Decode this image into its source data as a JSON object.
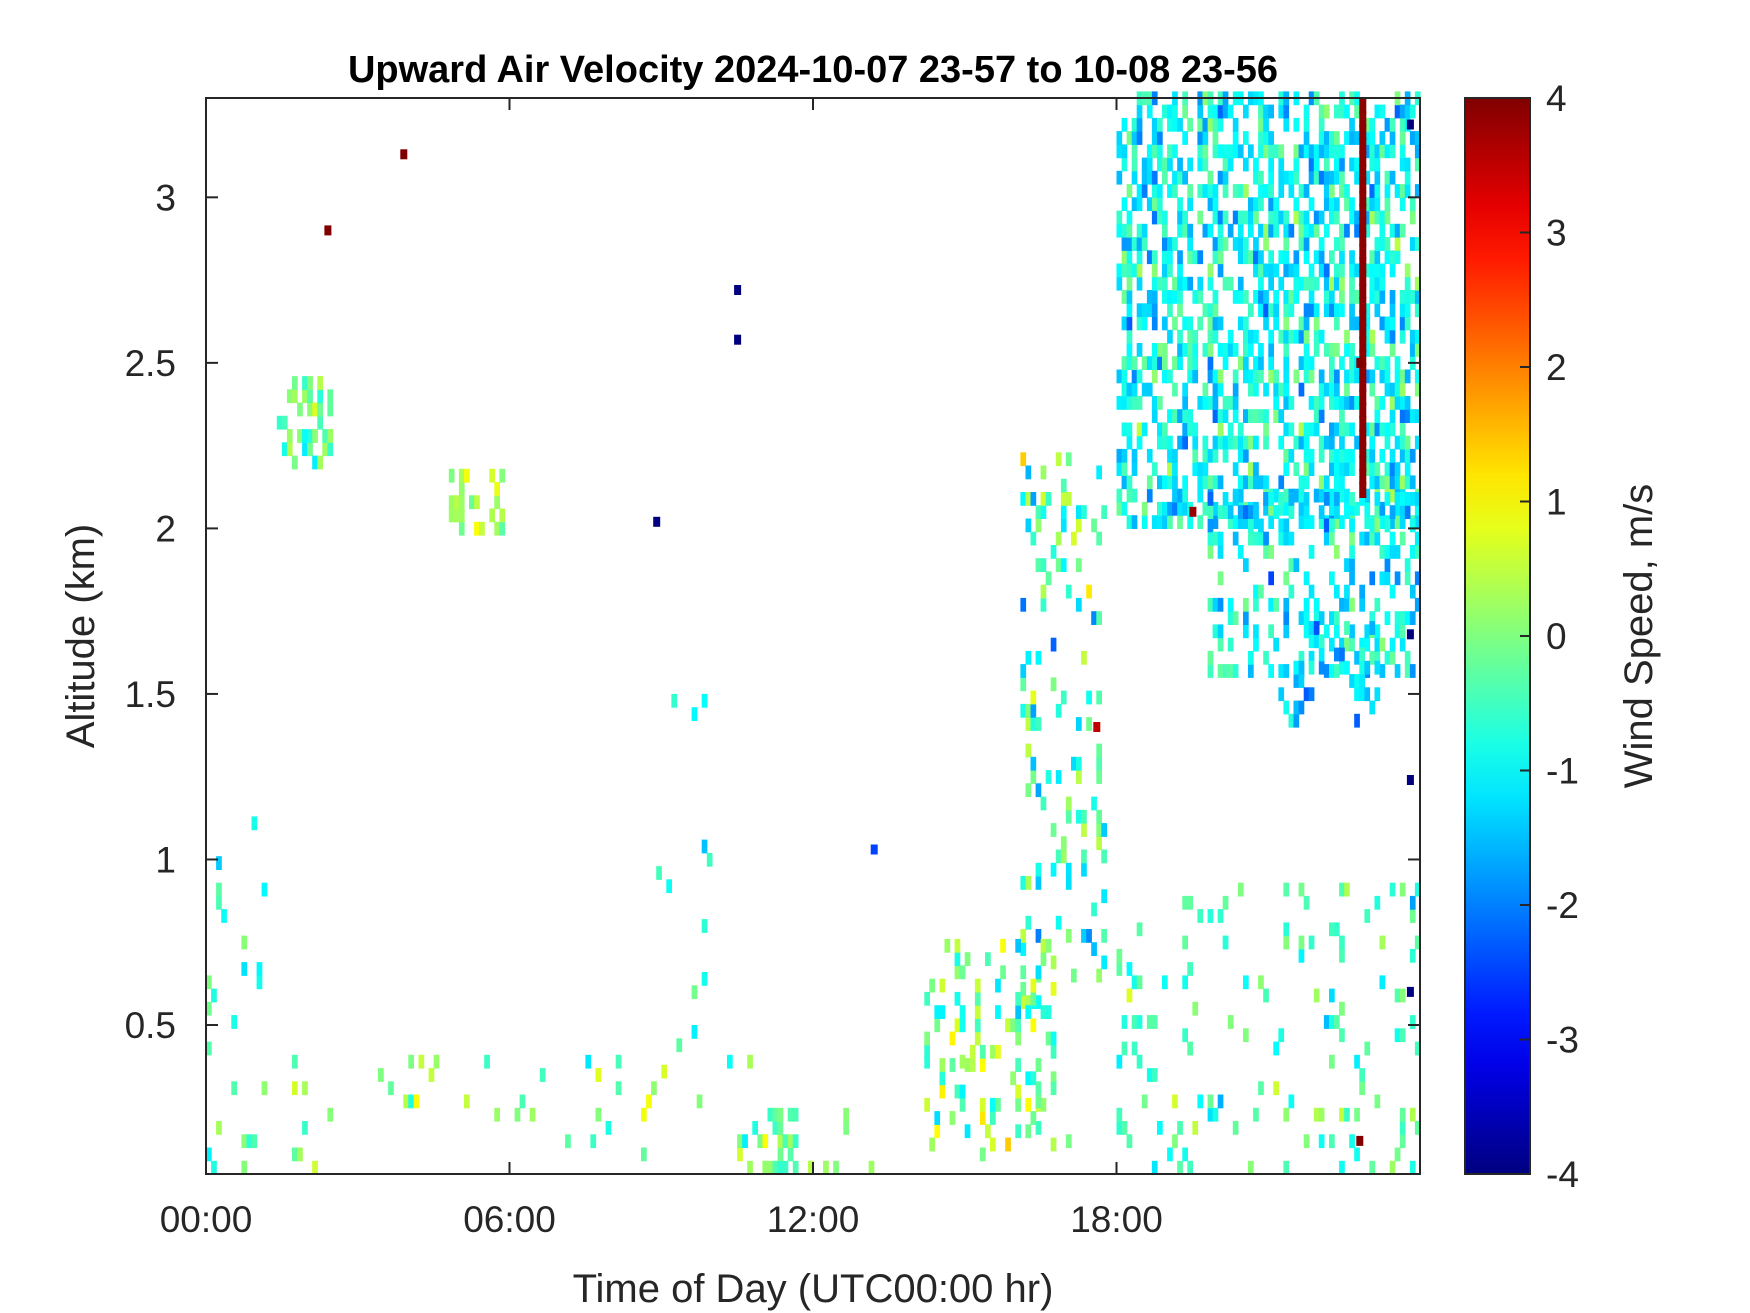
{
  "chart_data": {
    "type": "heatmap",
    "title": "Upward Air Velocity 2024-10-07 23-57 to 10-08 23-56",
    "xlabel": "Time of Day (UTC00:00 hr)",
    "ylabel": "Altitude (km)",
    "colorbar_label": "Wind Speed, m/s",
    "colormap": "jet",
    "xlim": [
      0,
      24
    ],
    "ylim": [
      0.05,
      3.3
    ],
    "clim": [
      -4,
      4
    ],
    "x_ticks": [
      0,
      6,
      12,
      18
    ],
    "x_tick_labels": [
      "00:00",
      "06:00",
      "12:00",
      "18:00"
    ],
    "y_ticks": [
      0.5,
      1,
      1.5,
      2,
      2.5,
      3
    ],
    "y_tick_labels": [
      "0.5",
      "1",
      "1.5",
      "2",
      "2.5",
      "3"
    ],
    "colorbar_ticks": [
      -4,
      -3,
      -2,
      -1,
      0,
      1,
      2,
      3,
      4
    ],
    "colorbar_tick_labels": [
      "-4",
      "-3",
      "-2",
      "-1",
      "0",
      "1",
      "2",
      "3",
      "4"
    ],
    "grid": false,
    "sample_points": [
      {
        "x": 2.4,
        "y": 2.9,
        "v": 4
      },
      {
        "x": 3.9,
        "y": 3.13,
        "v": 4
      },
      {
        "x": 10.5,
        "y": 2.72,
        "v": -4
      },
      {
        "x": 10.5,
        "y": 2.57,
        "v": -4
      },
      {
        "x": 8.9,
        "y": 2.02,
        "v": -4
      },
      {
        "x": 13.2,
        "y": 1.03,
        "v": -2.5
      },
      {
        "x": 17.6,
        "y": 1.4,
        "v": 3.5
      },
      {
        "x": 19.5,
        "y": 2.05,
        "v": 3.8
      },
      {
        "x": 22.8,
        "y": 2.5,
        "v": 4
      },
      {
        "x": 22.8,
        "y": 0.15,
        "v": 4
      },
      {
        "x": 23.8,
        "y": 3.22,
        "v": -4
      },
      {
        "x": 23.8,
        "y": 1.68,
        "v": -4
      },
      {
        "x": 23.8,
        "y": 1.24,
        "v": -4
      },
      {
        "x": 23.8,
        "y": 0.6,
        "v": -4
      }
    ]
  }
}
